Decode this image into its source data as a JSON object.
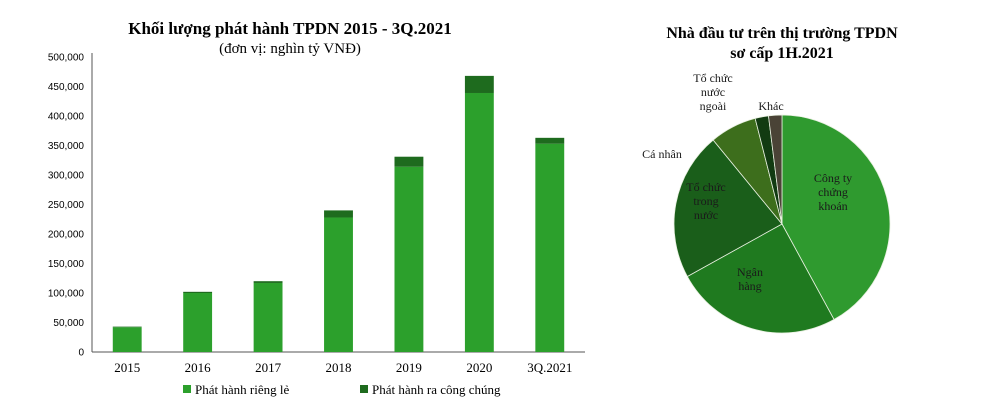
{
  "chart_data": [
    {
      "type": "bar",
      "stacked": true,
      "title": "Khối lượng phát hành TPDN 2015 - 3Q.2021",
      "subtitle": "(đơn vị: nghìn tỷ VNĐ)",
      "categories": [
        "2015",
        "2016",
        "2017",
        "2018",
        "2019",
        "2020",
        "3Q.2021"
      ],
      "series": [
        {
          "name": "Phát hành riêng lẻ",
          "color": "#2ca02c",
          "values": [
            42000,
            100000,
            117000,
            228000,
            314000,
            439000,
            353000
          ]
        },
        {
          "name": "Phát hành ra công chúng",
          "color": "#1e6b1e",
          "values": [
            1000,
            2000,
            3000,
            12000,
            17000,
            29000,
            10000
          ]
        }
      ],
      "yticks": [
        "0",
        "50,000",
        "100,000",
        "150,000",
        "200,000",
        "250,000",
        "300,000",
        "350,000",
        "400,000",
        "450,000",
        "500,000"
      ],
      "ylim": [
        0,
        500000
      ],
      "legend_position": "bottom"
    },
    {
      "type": "pie",
      "title_lines": [
        "Nhà đầu tư trên thị trường TPDN",
        "sơ cấp 1H.2021"
      ],
      "slices": [
        {
          "label_lines": [
            "Công ty",
            "chứng",
            "khoán"
          ],
          "value": 42,
          "color": "#2f9a2f"
        },
        {
          "label_lines": [
            "Ngân",
            "hàng"
          ],
          "value": 25,
          "color": "#1f7a1f"
        },
        {
          "label_lines": [
            "Tổ chức",
            "trong",
            "nước"
          ],
          "value": 22,
          "color": "#1a5e1a"
        },
        {
          "label_lines": [
            "Cá nhân"
          ],
          "value": 7,
          "color": "#3d6e1c"
        },
        {
          "label_lines": [
            "Tổ chức",
            "nước",
            "ngoài"
          ],
          "value": 2,
          "color": "#123b12"
        },
        {
          "label_lines": [
            "Khác"
          ],
          "value": 2,
          "color": "#4a4336"
        }
      ]
    }
  ]
}
